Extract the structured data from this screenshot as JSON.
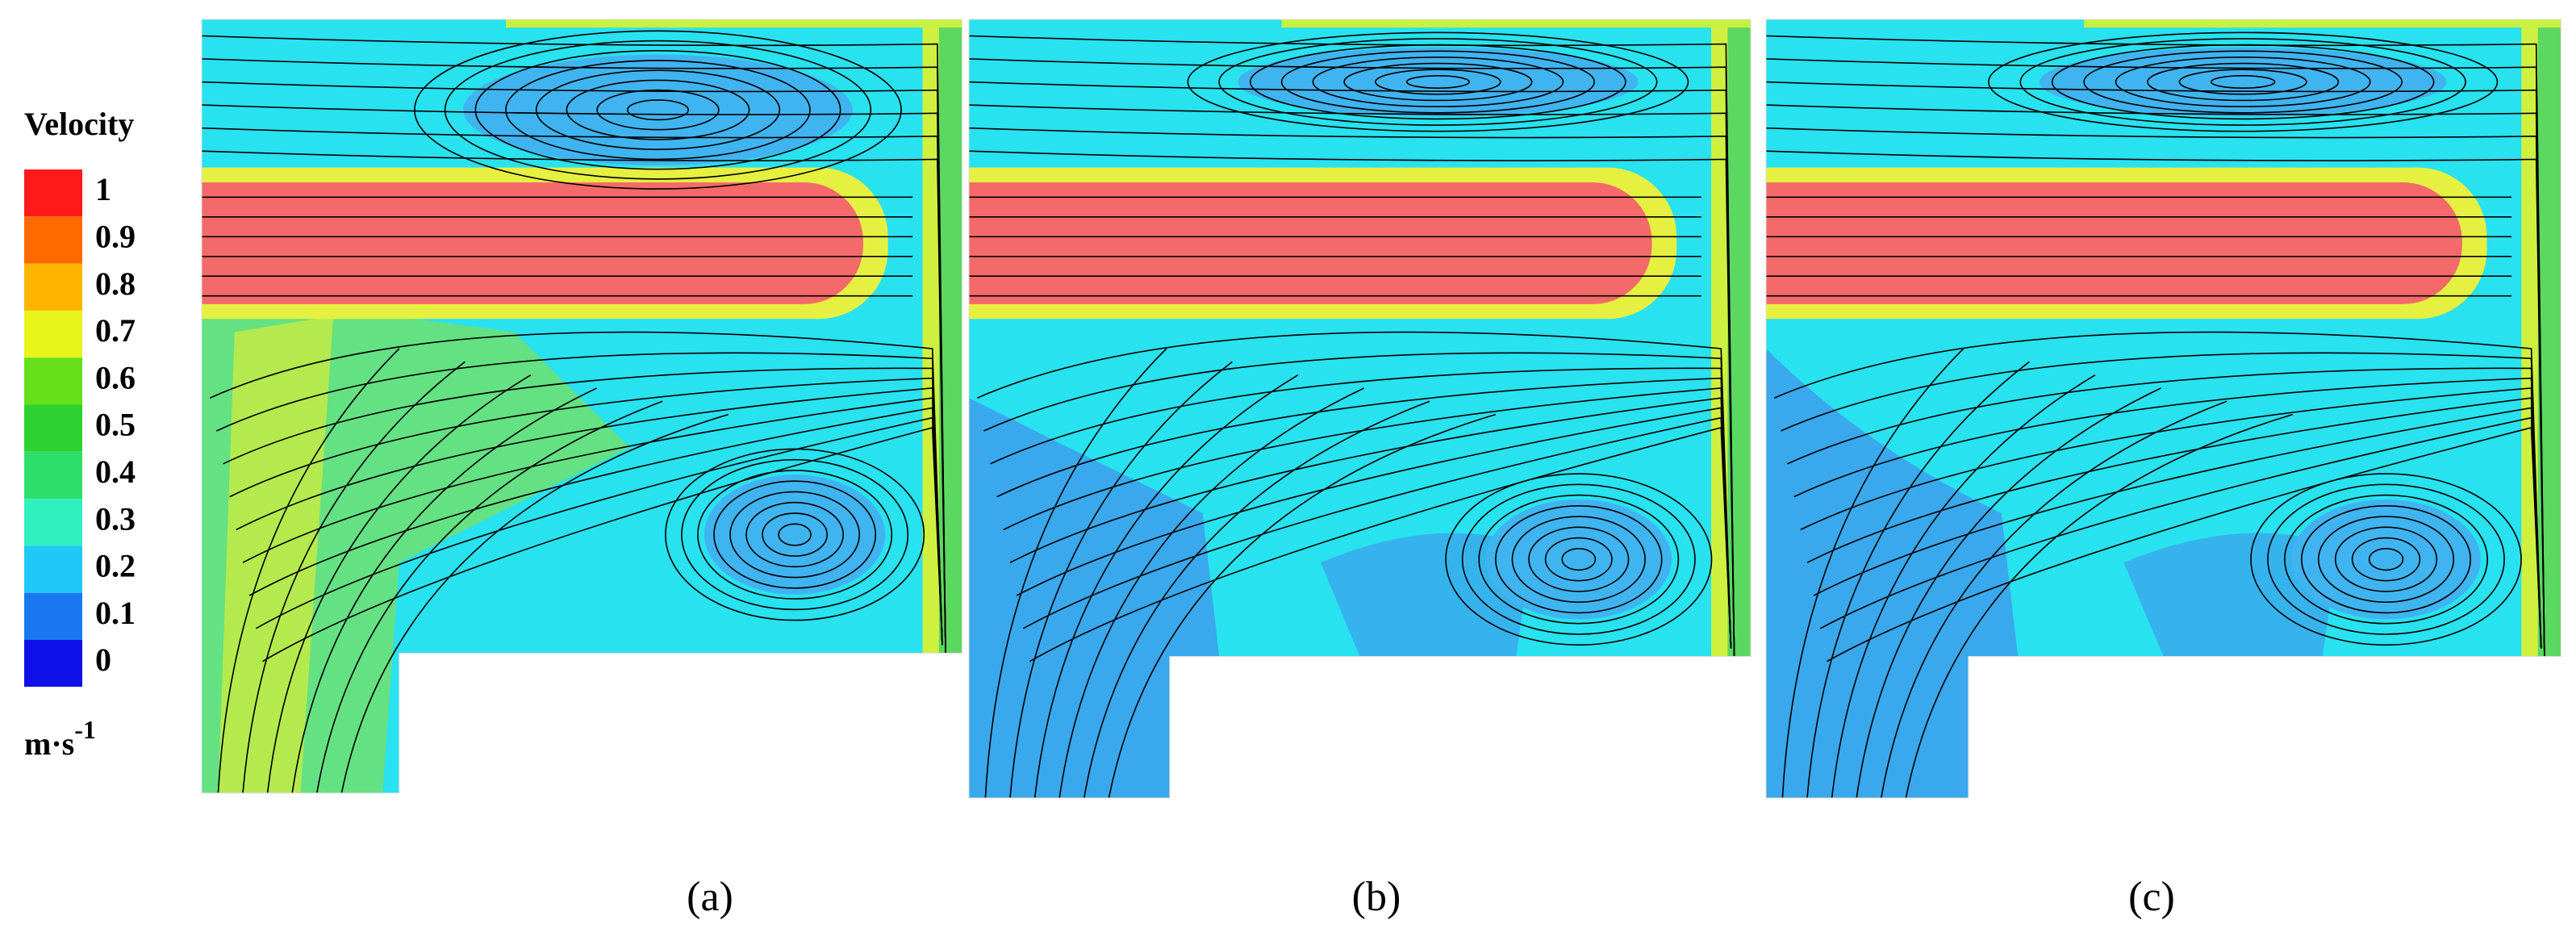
{
  "legend": {
    "title": "Velocity",
    "levels": [
      "1",
      "0.9",
      "0.8",
      "0.7",
      "0.6",
      "0.5",
      "0.4",
      "0.3",
      "0.2",
      "0.1",
      "0"
    ],
    "unit": "m·s",
    "unit_exponent": "-1"
  },
  "panels": [
    {
      "label": "(a)"
    },
    {
      "label": "(b)"
    },
    {
      "label": "(c)"
    }
  ]
}
